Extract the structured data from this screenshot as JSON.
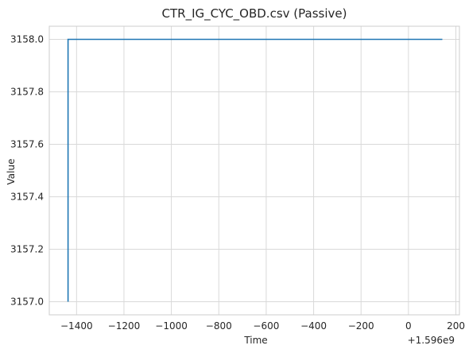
{
  "chart_data": {
    "type": "line",
    "title": "CTR_IG_CYC_OBD.csv (Passive)",
    "xlabel": "Time",
    "ylabel": "Value",
    "x_offset_label": "+1.596e9",
    "xlim": [
      -1515,
      215
    ],
    "ylim": [
      3156.95,
      3158.05
    ],
    "xticks": [
      -1400,
      -1200,
      -1000,
      -800,
      -600,
      -400,
      -200,
      0,
      200
    ],
    "xtick_labels": [
      "−1400",
      "−1200",
      "−1000",
      "−800",
      "−600",
      "−400",
      "−200",
      "0",
      "200"
    ],
    "yticks": [
      3157.0,
      3157.2,
      3157.4,
      3157.6,
      3157.8,
      3158.0
    ],
    "ytick_labels": [
      "3157.0",
      "3157.2",
      "3157.4",
      "3157.6",
      "3157.8",
      "3158.0"
    ],
    "grid": true,
    "series": [
      {
        "color": "#1f77b4",
        "x": [
          -1436,
          -1436,
          143
        ],
        "y": [
          3157.0,
          3158.0,
          3158.0
        ]
      }
    ]
  }
}
